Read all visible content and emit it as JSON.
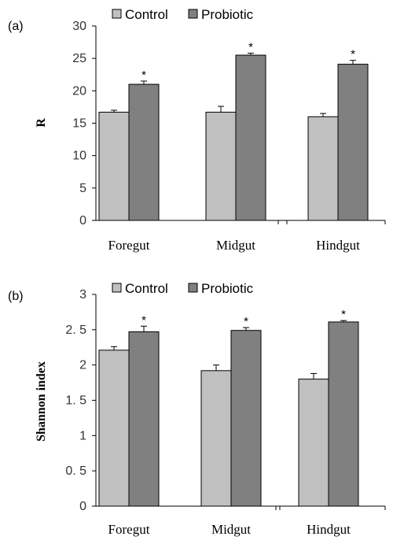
{
  "chart_data": [
    {
      "type": "bar",
      "panel_label": "(a)",
      "ylabel": "R",
      "xlabel": "",
      "categories": [
        "Foregut",
        "Midgut",
        "Hindgut"
      ],
      "ylim": [
        0,
        30
      ],
      "yticks": [
        "0",
        "5",
        "10",
        "15",
        "20",
        "25",
        "30"
      ],
      "ytick_values": [
        0,
        5,
        10,
        15,
        20,
        25,
        30
      ],
      "legend_position": "top",
      "series": [
        {
          "name": "Control",
          "color": "#c0c0c0",
          "values": [
            16.7,
            16.7,
            16.0
          ],
          "errors": [
            0.3,
            0.9,
            0.5
          ],
          "sig": [
            "",
            "",
            ""
          ]
        },
        {
          "name": "Probiotic",
          "color": "#808080",
          "values": [
            21.0,
            25.5,
            24.1
          ],
          "errors": [
            0.5,
            0.3,
            0.6
          ],
          "sig": [
            "*",
            "*",
            "*"
          ]
        }
      ]
    },
    {
      "type": "bar",
      "panel_label": "(b)",
      "ylabel": "Shannon index",
      "xlabel": "",
      "categories": [
        "Foregut",
        "Midgut",
        "Hindgut"
      ],
      "ylim": [
        0,
        3
      ],
      "yticks": [
        "0",
        "0. 5",
        "1",
        "1. 5",
        "2",
        "2. 5",
        "3"
      ],
      "ytick_values": [
        0,
        0.5,
        1,
        1.5,
        2,
        2.5,
        3
      ],
      "legend_position": "top",
      "series": [
        {
          "name": "Control",
          "color": "#c0c0c0",
          "values": [
            2.21,
            1.92,
            1.8
          ],
          "errors": [
            0.05,
            0.08,
            0.08
          ],
          "sig": [
            "",
            "",
            ""
          ]
        },
        {
          "name": "Probiotic",
          "color": "#808080",
          "values": [
            2.47,
            2.49,
            2.61
          ],
          "errors": [
            0.08,
            0.04,
            0.02
          ],
          "sig": [
            "*",
            "*",
            "*"
          ]
        }
      ]
    }
  ]
}
